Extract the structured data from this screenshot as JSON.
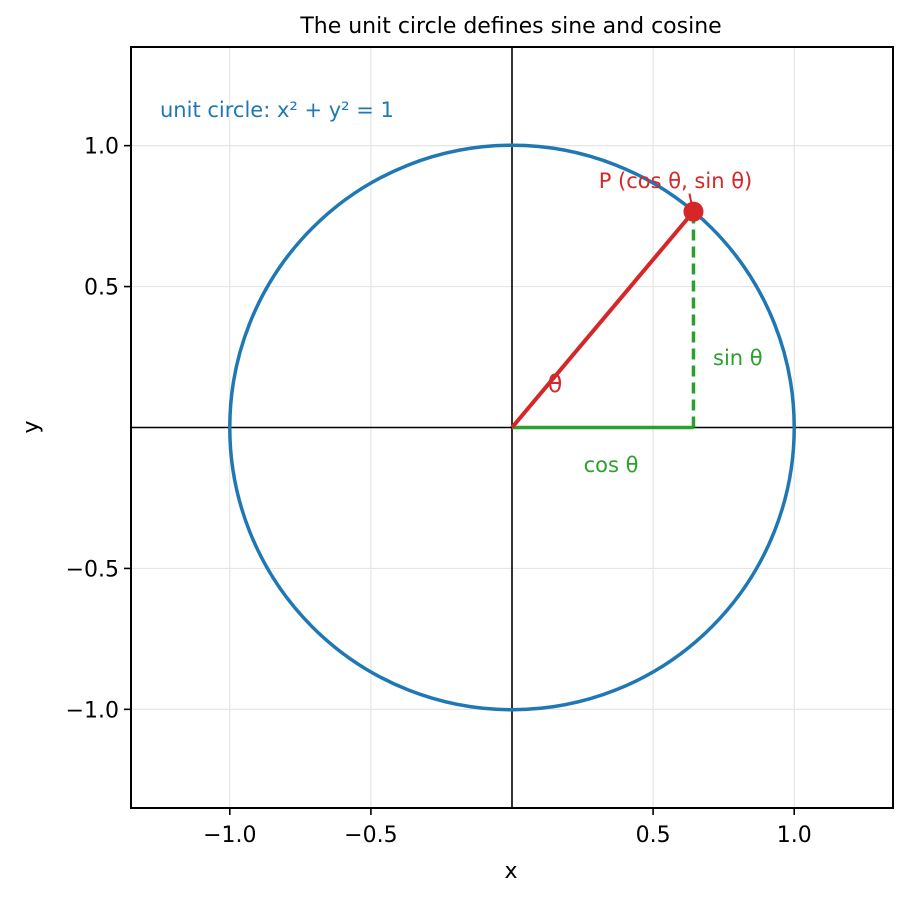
{
  "chart_data": {
    "type": "line",
    "title": "The unit circle defines sine and cosine",
    "xlabel": "x",
    "ylabel": "y",
    "xlim": [
      -1.35,
      1.35
    ],
    "ylim": [
      -1.35,
      1.35
    ],
    "grid": true,
    "x_ticks": [
      -1.0,
      -0.5,
      0.5,
      1.0
    ],
    "x_tick_labels": [
      "−1.0",
      "−0.5",
      "0.5",
      "1.0"
    ],
    "y_ticks": [
      -1.0,
      -0.5,
      0.5,
      1.0
    ],
    "y_tick_labels": [
      "−1.0",
      "−0.5",
      "0.5",
      "1.0"
    ],
    "circle": {
      "center": [
        0,
        0
      ],
      "radius": 1,
      "color": "#1f77b4"
    },
    "theta_deg": 50,
    "point": {
      "x": 0.643,
      "y": 0.766,
      "color": "#d62728"
    },
    "cos_segment_color": "#2ca02c",
    "sin_segment_color": "#2ca02c",
    "axis_line_color": "#000000",
    "annotations": {
      "circle_equation": "unit circle: x² + y² = 1",
      "point_label": "P (cos θ, sin θ)",
      "theta_label": "θ",
      "sin_label": "sin θ",
      "cos_label": "cos θ"
    }
  }
}
